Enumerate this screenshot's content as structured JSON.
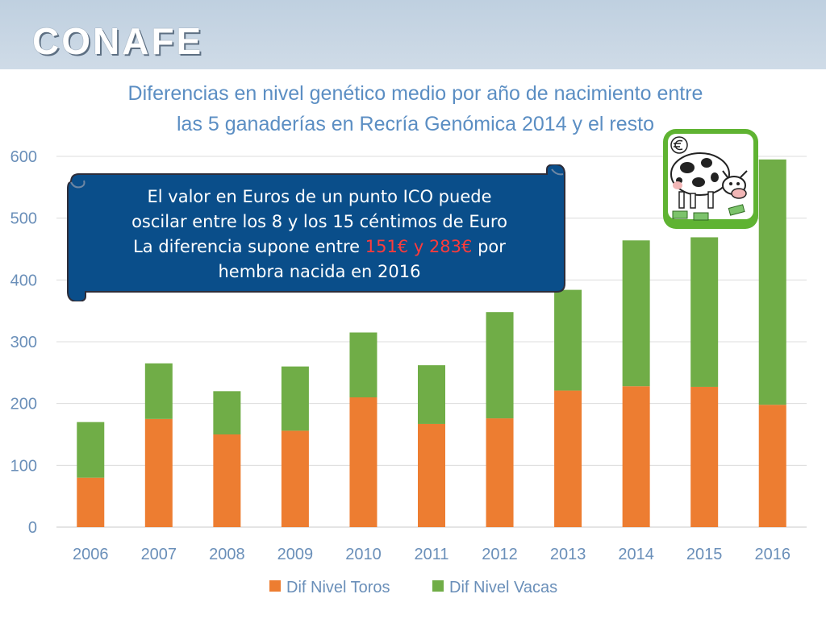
{
  "header": {
    "logo_text": "CONAFE"
  },
  "chart_data": {
    "type": "bar",
    "stacked": true,
    "title_lines": [
      "Diferencias en nivel genético medio por año de nacimiento entre",
      "las 5 ganaderías en Recría Genómica 2014 y el resto"
    ],
    "categories": [
      "2006",
      "2007",
      "2008",
      "2009",
      "2010",
      "2011",
      "2012",
      "2013",
      "2014",
      "2015",
      "2016"
    ],
    "series": [
      {
        "name": "Dif Nivel Toros",
        "color": "#ed7d31",
        "values": [
          80,
          175,
          150,
          156,
          210,
          167,
          176,
          221,
          228,
          227,
          198
        ]
      },
      {
        "name": "Dif Nivel Vacas",
        "color": "#70ad47",
        "values": [
          90,
          90,
          70,
          104,
          105,
          95,
          172,
          163,
          236,
          242,
          397
        ]
      }
    ],
    "yticks": [
      0,
      100,
      200,
      300,
      400,
      500,
      600
    ],
    "ylim": [
      0,
      600
    ],
    "grid": true,
    "legend": "bottom"
  },
  "callout": {
    "line1": "El valor en Euros de un punto ICO puede",
    "line2": "oscilar entre los 8 y los 15 céntimos de Euro",
    "line3_before": "La diferencia supone entre ",
    "line3_highlight": "151€ y 283€",
    "line3_after": " por",
    "line4": "hembra nacida en 2016",
    "background_color": "#0a4e8a",
    "highlight_color": "#ff3b3b"
  },
  "illustration": {
    "icon": "cow-eating-money-icon"
  }
}
